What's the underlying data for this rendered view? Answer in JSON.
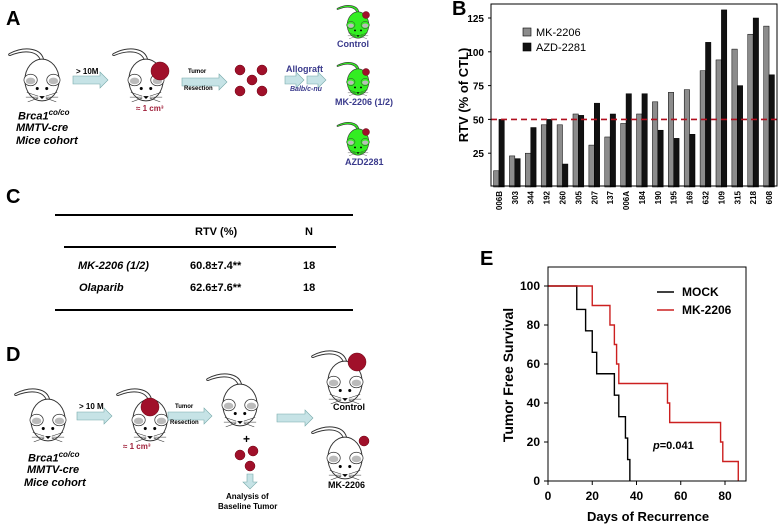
{
  "panels": {
    "A": "A",
    "B": "B",
    "C": "C",
    "D": "D",
    "E": "E"
  },
  "diagram_a": {
    "cohort_gene": "Brca1",
    "cohort_sup": "co/co",
    "cohort_line2": "MMTV-cre",
    "cohort_line3": "Mice cohort",
    "arrow1": "> 10M",
    "tumor_size": "≈ 1 cm³",
    "arrow2_top": "Tumor",
    "arrow2_bottom": "Resection",
    "allograft": "Allograft",
    "host": "Balb/c-nu",
    "groups": [
      "Control",
      "MK-2206 (1/2)",
      "AZD2281"
    ]
  },
  "table_c": {
    "headers": [
      "",
      "RTV (%)",
      "N"
    ],
    "rows": [
      {
        "drug": "MK-2206 (1/2)",
        "rtv": "60.8±7.4**",
        "n": "18"
      },
      {
        "drug": "Olaparib",
        "rtv": "62.6±7.6**",
        "n": "18"
      }
    ]
  },
  "diagram_d": {
    "cohort_gene": "Brca1",
    "cohort_sup": "co/co",
    "cohort_line2": "MMTV-cre",
    "cohort_line3": "Mice cohort",
    "arrow1": "> 10 M",
    "tumor_size": "≈ 1 cm³",
    "arrow2_top": "Tumor",
    "arrow2_bottom": "Resection",
    "plus": "+",
    "analysis_line1": "Analysis of",
    "analysis_line2": "Baseline Tumor",
    "groups": [
      "Control",
      "MK-2206"
    ]
  },
  "colors": {
    "tumor": "#a0102a",
    "arrow": "#c6e3e6",
    "treated_mouse": "#33ee22",
    "mk_bar": "#8c8c8c",
    "azd_bar": "#111111",
    "threshold": "#b01020",
    "mock_line": "#000000",
    "mk_line": "#cc2020"
  },
  "chart_data": [
    {
      "type": "bar",
      "panel": "B",
      "ylabel": "RTV (% of CTL)",
      "xlabel": "",
      "categories": [
        "006B",
        "303",
        "344",
        "192",
        "260",
        "305",
        "207",
        "137",
        "006A",
        "184",
        "190",
        "195",
        "169",
        "632",
        "109",
        "315",
        "218",
        "608"
      ],
      "series": [
        {
          "name": "MK-2206",
          "values": [
            12,
            23,
            25,
            46,
            46,
            54,
            31,
            37,
            47,
            54,
            63,
            70,
            72,
            86,
            94,
            102,
            113,
            119
          ]
        },
        {
          "name": "AZD-2281",
          "values": [
            50,
            21,
            44,
            50,
            17,
            53,
            62,
            54,
            69,
            69,
            42,
            36,
            39,
            107,
            131,
            75,
            125,
            83
          ]
        }
      ],
      "yticks": [
        "25",
        "50",
        "75",
        "100",
        "125"
      ],
      "ylim": [
        0,
        135
      ],
      "threshold": 50,
      "legend": "top-left",
      "grid": false
    },
    {
      "type": "line",
      "panel": "E",
      "subtype": "kaplan-meier step",
      "xlabel": "Days of Recurrence",
      "ylabel": "Tumor Free Survival",
      "xticks": [
        "0",
        "20",
        "40",
        "60",
        "80"
      ],
      "yticks": [
        "0",
        "20",
        "40",
        "60",
        "80",
        "100"
      ],
      "xlim": [
        0,
        90
      ],
      "ylim": [
        0,
        110
      ],
      "legend": "top-right",
      "annotation_p": "p",
      "annotation_value": "=0.041",
      "series": [
        {
          "name": "MOCK",
          "x": [
            0,
            13,
            17,
            20,
            22,
            30,
            32,
            35,
            36,
            37
          ],
          "y": [
            100,
            88,
            77,
            66,
            55,
            44,
            33,
            22,
            11,
            0
          ]
        },
        {
          "name": "MK-2206",
          "x": [
            0,
            20,
            28,
            30,
            31,
            32,
            54,
            55,
            78,
            79,
            86
          ],
          "y": [
            100,
            90,
            80,
            70,
            60,
            50,
            40,
            30,
            20,
            10,
            0
          ]
        }
      ]
    }
  ]
}
